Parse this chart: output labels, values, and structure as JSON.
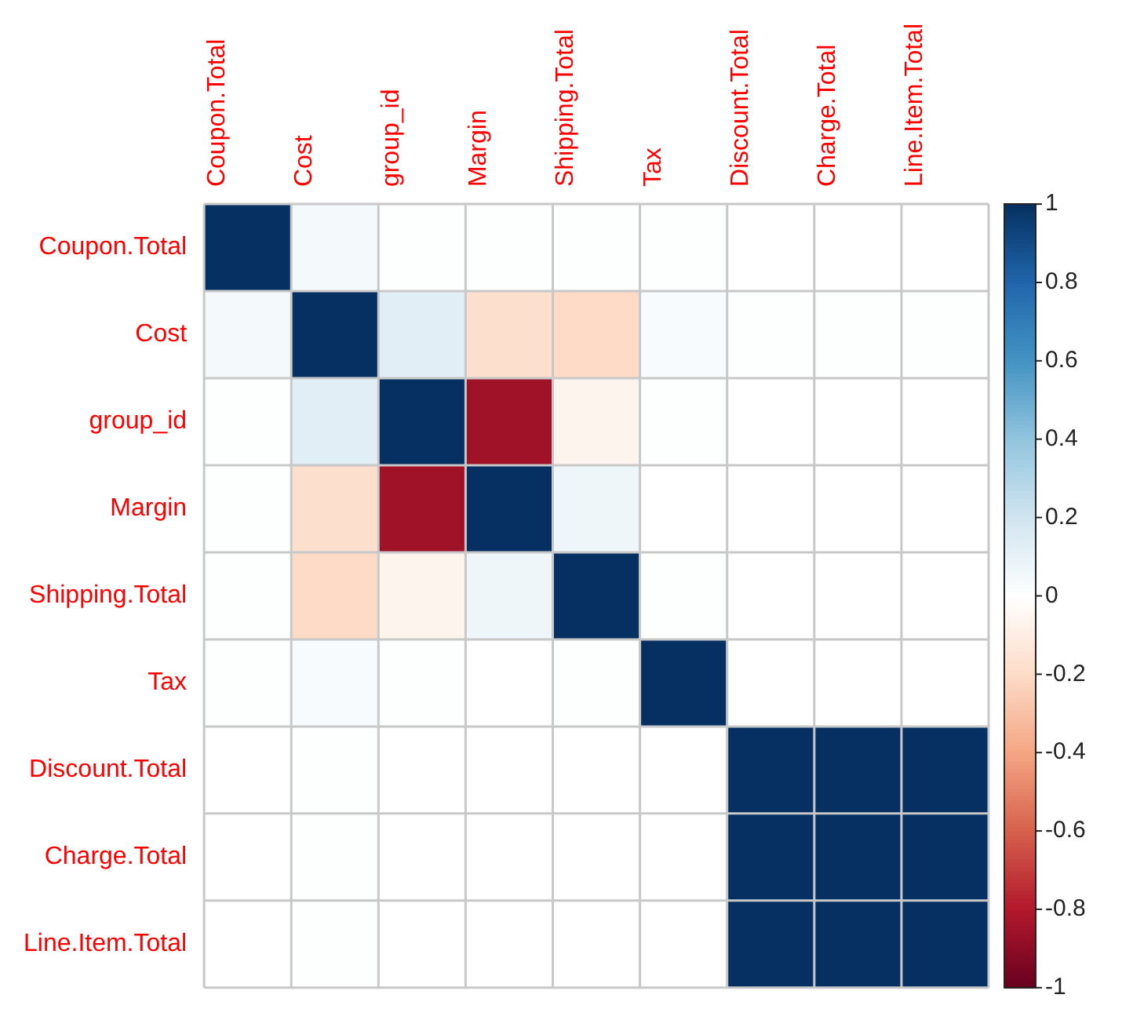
{
  "chart_data": {
    "type": "heatmap",
    "categories": [
      "Coupon.Total",
      "Cost",
      "group_id",
      "Margin",
      "Shipping.Total",
      "Tax",
      "Discount.Total",
      "Charge.Total",
      "Line.Item.Total"
    ],
    "y_categories": [
      "Coupon.Total",
      "Cost",
      "group_id",
      "Margin",
      "Shipping.Total",
      "Tax",
      "Discount.Total",
      "Charge.Total",
      "Line.Item.Total"
    ],
    "cells": [
      [
        1,
        0.05,
        0.01,
        0.01,
        0.01,
        0.01,
        0,
        0,
        0
      ],
      [
        0.05,
        1,
        0.13,
        -0.18,
        -0.2,
        0.03,
        0.01,
        0.01,
        0.01
      ],
      [
        0.01,
        0.13,
        1,
        -0.85,
        -0.06,
        0.01,
        0,
        0,
        0
      ],
      [
        0.01,
        -0.18,
        -0.85,
        1,
        0.07,
        0,
        0,
        0,
        0
      ],
      [
        0.01,
        -0.2,
        -0.06,
        0.07,
        1,
        0.01,
        0,
        0,
        0
      ],
      [
        0.01,
        0.03,
        0.01,
        0,
        0.01,
        1,
        0,
        0,
        0
      ],
      [
        0,
        0.01,
        0,
        0,
        0,
        0,
        1,
        1,
        1
      ],
      [
        0,
        0.01,
        0,
        0,
        0,
        0,
        1,
        1,
        1
      ],
      [
        0,
        0.01,
        0,
        0,
        0,
        0,
        1,
        1,
        1
      ]
    ],
    "clim": [
      -1,
      1
    ],
    "cticks": [
      -1,
      -0.8,
      -0.6,
      -0.4,
      -0.2,
      0,
      0.2,
      0.4,
      0.6,
      0.8,
      1
    ],
    "grid": true
  }
}
